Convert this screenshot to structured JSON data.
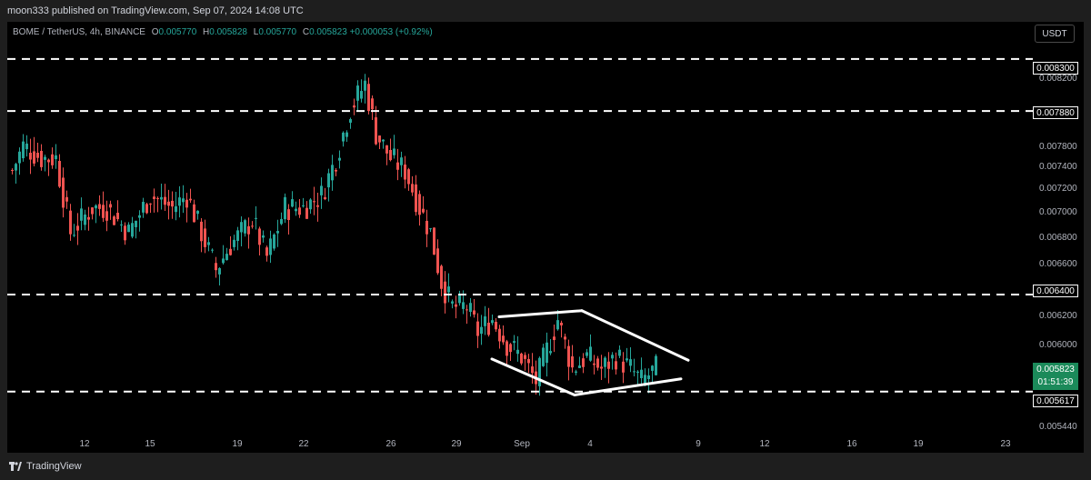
{
  "header": {
    "published": "moon333 published on TradingView.com, Sep 07, 2024 14:08 UTC"
  },
  "legend": {
    "symbol": "BOME / TetherUS, 4h, BINANCE",
    "o_label": "O",
    "o": "0.005770",
    "h_label": "H",
    "h": "0.005828",
    "l_label": "L",
    "l": "0.005770",
    "c_label": "C",
    "c": "0.005823",
    "change": "+0.000053 (+0.92%)"
  },
  "currency_button": "USDT",
  "price_axis": {
    "ticks": [
      "0.008200",
      "0.007800",
      "0.007400",
      "0.007200",
      "0.007000",
      "0.006800",
      "0.006600",
      "0.006200",
      "0.006000",
      "0.005440"
    ],
    "levels": [
      "0.008300",
      "0.007880",
      "0.006400",
      "0.005617"
    ],
    "last_price": "0.005823",
    "countdown": "01:51:39"
  },
  "time_axis": {
    "labels": [
      "12",
      "15",
      "19",
      "22",
      "26",
      "29",
      "Sep",
      "4",
      "9",
      "12",
      "16",
      "19",
      "23"
    ]
  },
  "footer": {
    "brand": "TradingView"
  },
  "colors": {
    "up": "#26a69a",
    "down": "#ef5350",
    "background": "#000000",
    "level_line": "#ffffff",
    "pattern": "#ffffff"
  },
  "chart_data": {
    "type": "candlestick",
    "title": "BOME / TetherUS, 4h, BINANCE",
    "ylim": [
      0.0053,
      0.0086
    ],
    "horizontal_levels": [
      0.0083,
      0.00788,
      0.0064,
      0.005617
    ],
    "pattern": "symmetrical triangle / wedge (white lines)",
    "path_anchors": [
      {
        "i": 0,
        "v": 0.0074
      },
      {
        "i": 3,
        "v": 0.0076
      },
      {
        "i": 8,
        "v": 0.0075
      },
      {
        "i": 12,
        "v": 0.0075
      },
      {
        "i": 16,
        "v": 0.0069
      },
      {
        "i": 22,
        "v": 0.0071
      },
      {
        "i": 26,
        "v": 0.0071
      },
      {
        "i": 32,
        "v": 0.0069
      },
      {
        "i": 38,
        "v": 0.0072
      },
      {
        "i": 44,
        "v": 0.0071
      },
      {
        "i": 48,
        "v": 0.0072
      },
      {
        "i": 52,
        "v": 0.0069
      },
      {
        "i": 56,
        "v": 0.0066
      },
      {
        "i": 60,
        "v": 0.0068
      },
      {
        "i": 66,
        "v": 0.007
      },
      {
        "i": 70,
        "v": 0.0067
      },
      {
        "i": 75,
        "v": 0.0071
      },
      {
        "i": 80,
        "v": 0.0071
      },
      {
        "i": 85,
        "v": 0.0072
      },
      {
        "i": 89,
        "v": 0.0075
      },
      {
        "i": 93,
        "v": 0.0079
      },
      {
        "i": 97,
        "v": 0.0081
      },
      {
        "i": 100,
        "v": 0.0077
      },
      {
        "i": 104,
        "v": 0.0075
      },
      {
        "i": 108,
        "v": 0.0074
      },
      {
        "i": 112,
        "v": 0.0071
      },
      {
        "i": 115,
        "v": 0.0069
      },
      {
        "i": 118,
        "v": 0.0065
      },
      {
        "i": 121,
        "v": 0.0063
      },
      {
        "i": 125,
        "v": 0.0063
      },
      {
        "i": 128,
        "v": 0.0061
      },
      {
        "i": 132,
        "v": 0.0062
      },
      {
        "i": 136,
        "v": 0.006
      },
      {
        "i": 140,
        "v": 0.0059
      },
      {
        "i": 144,
        "v": 0.0057
      },
      {
        "i": 150,
        "v": 0.0062
      },
      {
        "i": 154,
        "v": 0.0058
      },
      {
        "i": 158,
        "v": 0.0059
      },
      {
        "i": 162,
        "v": 0.0058
      },
      {
        "i": 166,
        "v": 0.0059
      },
      {
        "i": 170,
        "v": 0.0058
      },
      {
        "i": 173,
        "v": 0.0057
      },
      {
        "i": 177,
        "v": 0.0058
      }
    ]
  }
}
